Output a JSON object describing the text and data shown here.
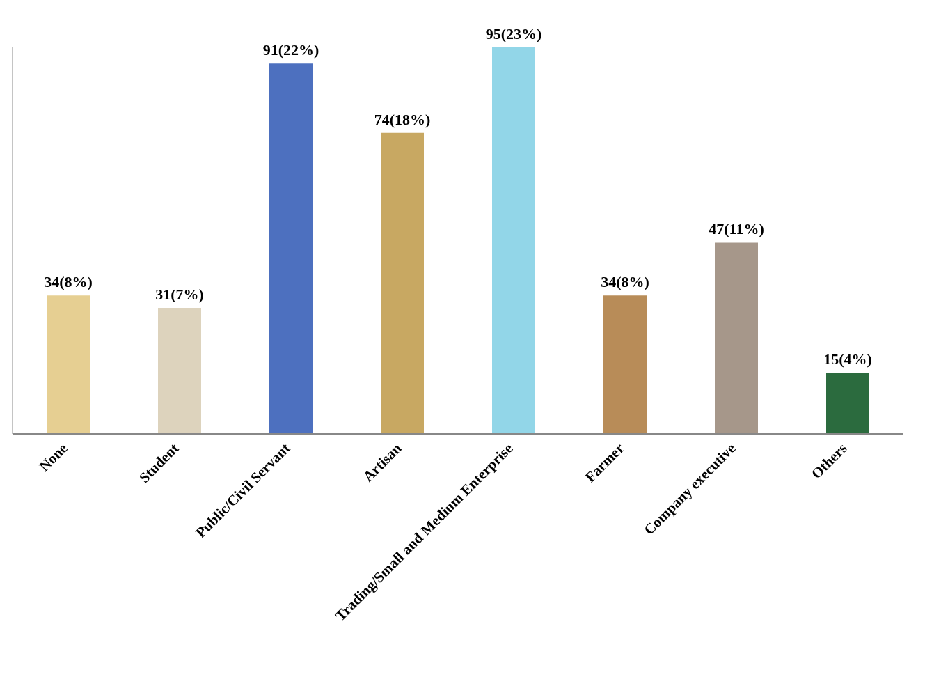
{
  "chart_data": {
    "type": "bar",
    "categories": [
      "None",
      "Student",
      "Public/Civil Servant",
      "Artisan",
      "Trading/Small and Medium Enterprise",
      "Farmer",
      "Company executive",
      "Others"
    ],
    "values": [
      34,
      31,
      91,
      74,
      95,
      34,
      47,
      15
    ],
    "colors": [
      "#e6cf92",
      "#ddd3bd",
      "#4d70bf",
      "#c8a862",
      "#92d6e8",
      "#b88c58",
      "#a6978a",
      "#2b6b3e"
    ],
    "value_labels": [
      "34(8%)",
      "31(7%)",
      "91(22%)",
      "74(18%)",
      "95(23%)",
      "34(8%)",
      "47(11%)",
      "15(4%)"
    ],
    "grid": false,
    "legend": false
  }
}
